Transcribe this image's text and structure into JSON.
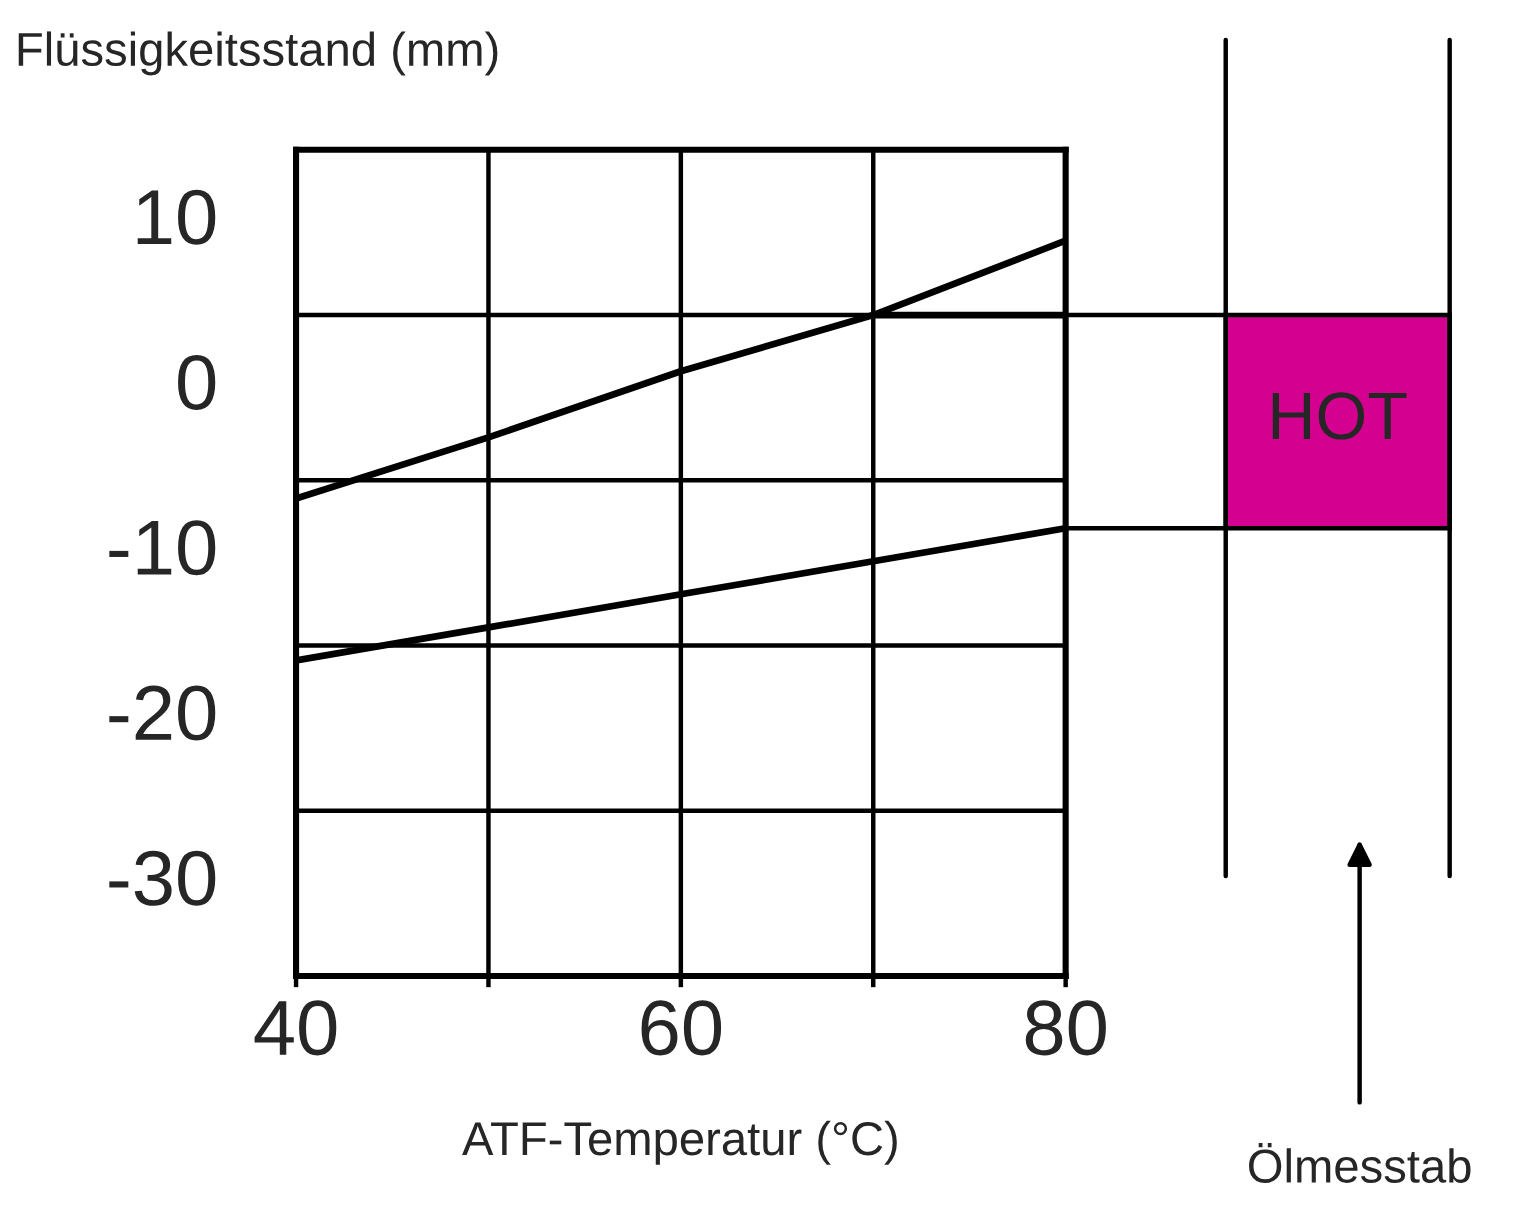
{
  "chart_data": {
    "type": "line",
    "ylabel": "Flüssigkeitsstand (mm)",
    "xlabel": "ATF-Temperatur (°C)",
    "xlim": [
      40,
      80
    ],
    "xticks": [
      40,
      {
        "value": 50,
        "label": null
      },
      60,
      {
        "value": 70,
        "label": null
      },
      80
    ],
    "ylim": [
      -36,
      14
    ],
    "yticks": [
      10,
      0,
      -10,
      -20,
      -30
    ],
    "grid": "x",
    "ref_lines": [
      {
        "axis": "y",
        "value": 4,
        "color": "#000000"
      },
      {
        "axis": "y",
        "value": -6,
        "color": "#000000"
      },
      {
        "axis": "y",
        "value": -16,
        "color": "#000000"
      },
      {
        "axis": "y",
        "value": -26,
        "color": "#000000"
      }
    ],
    "series": [
      {
        "color": "#000000",
        "x": [
          40,
          50,
          60,
          70,
          80
        ],
        "values": [
          -7.1,
          -3.4,
          0.6,
          4.0,
          8.5
        ]
      },
      {
        "color": "#000000",
        "x": [
          40,
          50,
          60,
          70,
          80
        ],
        "values": [
          -16.9,
          -14.9,
          -12.9,
          -10.9,
          -8.9
        ]
      },
      {
        "color": "#000000",
        "x": [
          70,
          80
        ],
        "values": [
          4.0,
          4.0
        ]
      }
    ],
    "annotations": [
      "HOT",
      "Ölmesstab"
    ],
    "marker": "none",
    "line_style": "solid"
  }
}
